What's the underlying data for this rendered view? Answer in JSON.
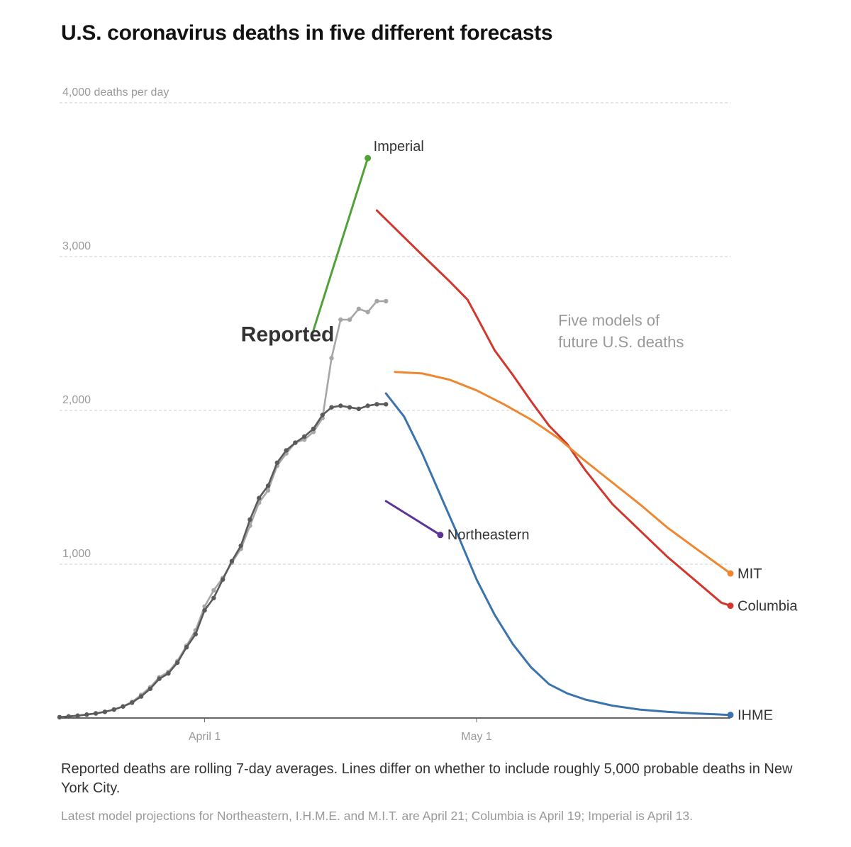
{
  "title": "U.S. coronavirus deaths in five different forecasts",
  "notes": {
    "caption": "Reported deaths are rolling 7-day averages. Lines differ on whether to include roughly 5,000 probable deaths in New York City.",
    "source": "Latest model projections for Northeastern, I.H.M.E. and M.I.T. are April 21; Columbia is April 19; Imperial is April 13."
  },
  "chart_data": {
    "type": "line",
    "title": "U.S. coronavirus deaths in five different forecasts",
    "ylabel": "deaths per day",
    "ylim": [
      0,
      4000
    ],
    "yticks": [
      {
        "value": 1000,
        "label": "1,000"
      },
      {
        "value": 2000,
        "label": "2,000"
      },
      {
        "value": 3000,
        "label": "3,000"
      },
      {
        "value": 4000,
        "label": "4,000 deaths per day"
      }
    ],
    "xlim": [
      "2020-03-16",
      "2020-05-29"
    ],
    "xticks": [
      {
        "value": "2020-04-01",
        "label": "April 1"
      },
      {
        "value": "2020-05-01",
        "label": "May 1"
      }
    ],
    "grid": "horizontal dashed",
    "annotations": [
      {
        "text": "Reported",
        "x": "2020-04-05",
        "y": 2450
      },
      {
        "text": "Five models of",
        "x": "2020-05-10",
        "y": 2550
      },
      {
        "text": "future U.S. deaths",
        "x": "2020-05-10",
        "y": 2410
      }
    ],
    "series": [
      {
        "name": "Reported",
        "color": "#a6a6a6",
        "markers": true,
        "x": [
          "2020-03-16",
          "2020-03-17",
          "2020-03-18",
          "2020-03-19",
          "2020-03-20",
          "2020-03-21",
          "2020-03-22",
          "2020-03-23",
          "2020-03-24",
          "2020-03-25",
          "2020-03-26",
          "2020-03-27",
          "2020-03-28",
          "2020-03-29",
          "2020-03-30",
          "2020-03-31",
          "2020-04-01",
          "2020-04-02",
          "2020-04-03",
          "2020-04-04",
          "2020-04-05",
          "2020-04-06",
          "2020-04-07",
          "2020-04-08",
          "2020-04-09",
          "2020-04-10",
          "2020-04-11",
          "2020-04-12",
          "2020-04-13",
          "2020-04-14",
          "2020-04-15",
          "2020-04-16",
          "2020-04-17",
          "2020-04-18",
          "2020-04-19",
          "2020-04-20",
          "2020-04-21"
        ],
        "y": [
          5,
          10,
          15,
          22,
          30,
          40,
          55,
          75,
          105,
          150,
          200,
          265,
          300,
          370,
          470,
          570,
          725,
          830,
          910,
          1010,
          1100,
          1250,
          1400,
          1480,
          1640,
          1720,
          1790,
          1810,
          1860,
          1950,
          2340,
          2590,
          2590,
          2660,
          2640,
          2710,
          2710
        ]
      },
      {
        "name": "Reported",
        "color": "#5a5a5a",
        "markers": true,
        "x": [
          "2020-03-16",
          "2020-03-17",
          "2020-03-18",
          "2020-03-19",
          "2020-03-20",
          "2020-03-21",
          "2020-03-22",
          "2020-03-23",
          "2020-03-24",
          "2020-03-25",
          "2020-03-26",
          "2020-03-27",
          "2020-03-28",
          "2020-03-29",
          "2020-03-30",
          "2020-03-31",
          "2020-04-01",
          "2020-04-02",
          "2020-04-03",
          "2020-04-04",
          "2020-04-05",
          "2020-04-06",
          "2020-04-07",
          "2020-04-08",
          "2020-04-09",
          "2020-04-10",
          "2020-04-11",
          "2020-04-12",
          "2020-04-13",
          "2020-04-14",
          "2020-04-15",
          "2020-04-16",
          "2020-04-17",
          "2020-04-18",
          "2020-04-19",
          "2020-04-20",
          "2020-04-21"
        ],
        "y": [
          5,
          10,
          15,
          22,
          30,
          40,
          55,
          75,
          100,
          140,
          190,
          255,
          290,
          360,
          460,
          545,
          700,
          780,
          900,
          1020,
          1120,
          1290,
          1430,
          1510,
          1660,
          1740,
          1790,
          1830,
          1880,
          1970,
          2020,
          2030,
          2020,
          2010,
          2030,
          2040,
          2040
        ]
      },
      {
        "name": "Imperial",
        "color": "#51a13a",
        "end_marker": true,
        "x": [
          "2020-04-13",
          "2020-04-19"
        ],
        "y": [
          2520,
          3640
        ]
      },
      {
        "name": "Columbia",
        "color": "#d0382d",
        "end_marker": true,
        "x": [
          "2020-04-20",
          "2020-04-25",
          "2020-04-28",
          "2020-04-30",
          "2020-05-01",
          "2020-05-03",
          "2020-05-05",
          "2020-05-07",
          "2020-05-09",
          "2020-05-11",
          "2020-05-13",
          "2020-05-16",
          "2020-05-19",
          "2020-05-22",
          "2020-05-25",
          "2020-05-28",
          "2020-05-29"
        ],
        "y": [
          3300,
          3010,
          2840,
          2720,
          2610,
          2390,
          2230,
          2060,
          1900,
          1780,
          1610,
          1390,
          1220,
          1050,
          900,
          750,
          730
        ]
      },
      {
        "name": "MIT",
        "color": "#ee8731",
        "end_marker": true,
        "x": [
          "2020-04-22",
          "2020-04-25",
          "2020-04-28",
          "2020-05-01",
          "2020-05-04",
          "2020-05-07",
          "2020-05-10",
          "2020-05-13",
          "2020-05-16",
          "2020-05-19",
          "2020-05-22",
          "2020-05-25",
          "2020-05-29"
        ],
        "y": [
          2250,
          2240,
          2200,
          2130,
          2040,
          1940,
          1820,
          1670,
          1530,
          1390,
          1240,
          1110,
          940
        ]
      },
      {
        "name": "IHME",
        "color": "#3b74ac",
        "end_marker": true,
        "x": [
          "2020-04-21",
          "2020-04-23",
          "2020-04-25",
          "2020-04-27",
          "2020-04-29",
          "2020-05-01",
          "2020-05-03",
          "2020-05-05",
          "2020-05-07",
          "2020-05-09",
          "2020-05-11",
          "2020-05-13",
          "2020-05-16",
          "2020-05-19",
          "2020-05-22",
          "2020-05-25",
          "2020-05-29"
        ],
        "y": [
          2110,
          1960,
          1720,
          1450,
          1180,
          900,
          670,
          480,
          330,
          220,
          160,
          120,
          80,
          55,
          40,
          30,
          20
        ]
      },
      {
        "name": "Northeastern",
        "color": "#5b3495",
        "end_marker": true,
        "x": [
          "2020-04-21",
          "2020-04-24",
          "2020-04-27"
        ],
        "y": [
          1410,
          1300,
          1190
        ]
      }
    ],
    "series_labels": [
      {
        "text": "Imperial",
        "series": "Imperial"
      },
      {
        "text": "Northeastern",
        "series": "Northeastern"
      },
      {
        "text": "MIT",
        "series": "MIT"
      },
      {
        "text": "Columbia",
        "series": "Columbia"
      },
      {
        "text": "IHME",
        "series": "IHME"
      }
    ]
  }
}
